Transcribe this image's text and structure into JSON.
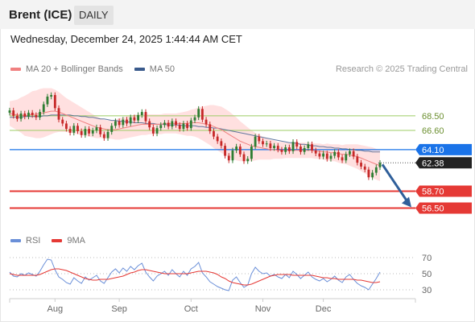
{
  "header": {
    "symbol": "Brent (ICE)",
    "period": "DAILY"
  },
  "datetime": "Wednesday, December 24, 2025 1:44:44 AM CET",
  "legend": {
    "ma20_label": "MA 20 + Bollinger Bands",
    "ma50_label": "MA 50",
    "credit": "Research © 2025 Trading Central"
  },
  "rsi_legend": {
    "rsi_label": "RSI",
    "ma9_label": "9MA"
  },
  "colors": {
    "up": "#2e7d32",
    "down": "#c62828",
    "bollinger": "#ffd6d6",
    "ma20": "#f08080",
    "ma50": "#3a5a8c",
    "resistance": "#9ccc65",
    "pivot": "#1a73e8",
    "support": "#e53935",
    "current": "#222222",
    "arrow": "#2f5f9a",
    "rsi": "#6a8fd8",
    "rsi_ma": "#e53935"
  },
  "chart_data": [
    {
      "type": "candlestick",
      "title": "Brent (ICE)",
      "xlabel": "",
      "ylabel": "",
      "x_ticks": [
        "Aug",
        "Sep",
        "Oct",
        "Nov",
        "Dec"
      ],
      "ylim": [
        55.5,
        71
      ],
      "levels": [
        {
          "value": 68.5,
          "label": "68.50",
          "kind": "resistance"
        },
        {
          "value": 66.6,
          "label": "66.60",
          "kind": "resistance"
        },
        {
          "value": 64.1,
          "label": "64.10",
          "kind": "pivot"
        },
        {
          "value": 62.38,
          "label": "62.38",
          "kind": "current"
        },
        {
          "value": 58.7,
          "label": "58.70",
          "kind": "support"
        },
        {
          "value": 56.5,
          "label": "56.50",
          "kind": "support"
        }
      ],
      "closes": [
        69.2,
        68.5,
        68.1,
        68.8,
        68.4,
        68.9,
        68.6,
        68.3,
        69.0,
        70.0,
        71.0,
        71.2,
        69.5,
        68.0,
        67.5,
        66.8,
        66.3,
        67.2,
        66.5,
        66.0,
        66.8,
        66.2,
        66.6,
        67.0,
        66.1,
        65.6,
        66.4,
        67.2,
        67.8,
        67.3,
        68.0,
        67.5,
        68.3,
        67.9,
        68.6,
        69.0,
        67.8,
        67.0,
        66.2,
        66.9,
        67.3,
        67.6,
        67.1,
        67.8,
        67.3,
        66.8,
        67.5,
        66.9,
        67.9,
        68.3,
        69.4,
        68.0,
        67.4,
        66.5,
        65.8,
        65.2,
        64.6,
        63.3,
        62.7,
        64.0,
        64.5,
        63.5,
        62.6,
        62.9,
        64.5,
        65.8,
        65.2,
        64.8,
        64.9,
        64.3,
        64.6,
        64.1,
        63.8,
        64.4,
        63.9,
        65.1,
        64.5,
        63.8,
        64.3,
        64.8,
        64.0,
        63.6,
        63.2,
        63.6,
        62.9,
        63.3,
        63.8,
        63.1,
        62.7,
        63.5,
        63.9,
        63.2,
        62.4,
        61.9,
        61.5,
        60.5,
        61.1,
        61.8,
        62.38
      ],
      "ma20": [
        68.8,
        68.7,
        68.6,
        68.6,
        68.5,
        68.6,
        68.7,
        68.7,
        68.8,
        68.9,
        69.0,
        69.1,
        69.1,
        69.0,
        68.8,
        68.6,
        68.4,
        68.2,
        68.0,
        67.8,
        67.6,
        67.4,
        67.2,
        67.0,
        66.9,
        66.8,
        66.7,
        66.7,
        66.7,
        66.8,
        66.9,
        67.0,
        67.1,
        67.2,
        67.3,
        67.4,
        67.4,
        67.4,
        67.4,
        67.4,
        67.4,
        67.5,
        67.5,
        67.5,
        67.5,
        67.5,
        67.5,
        67.5,
        67.6,
        67.6,
        67.6,
        67.5,
        67.4,
        67.3,
        67.1,
        66.9,
        66.7,
        66.4,
        66.1,
        65.8,
        65.5,
        65.2,
        65.0,
        64.8,
        64.6,
        64.5,
        64.4,
        64.3,
        64.2,
        64.1,
        64.1,
        64.0,
        64.0,
        64.0,
        64.0,
        64.0,
        64.0,
        64.0,
        64.0,
        64.0,
        64.0,
        63.9,
        63.9,
        63.8,
        63.8,
        63.7,
        63.7,
        63.6,
        63.5,
        63.5,
        63.4,
        63.3,
        63.2,
        63.0,
        62.8,
        62.6,
        62.4,
        62.2,
        62.0
      ],
      "ma50": [
        68.3,
        68.3,
        68.3,
        68.3,
        68.4,
        68.4,
        68.4,
        68.4,
        68.4,
        68.5,
        68.5,
        68.6,
        68.6,
        68.6,
        68.6,
        68.6,
        68.6,
        68.5,
        68.5,
        68.4,
        68.4,
        68.3,
        68.3,
        68.2,
        68.1,
        68.1,
        68.0,
        67.9,
        67.9,
        67.8,
        67.8,
        67.7,
        67.7,
        67.6,
        67.6,
        67.6,
        67.5,
        67.5,
        67.5,
        67.4,
        67.4,
        67.4,
        67.3,
        67.3,
        67.3,
        67.3,
        67.2,
        67.2,
        67.2,
        67.2,
        67.1,
        67.1,
        67.0,
        67.0,
        66.9,
        66.9,
        66.8,
        66.7,
        66.6,
        66.5,
        66.4,
        66.3,
        66.2,
        66.1,
        66.0,
        65.9,
        65.8,
        65.7,
        65.6,
        65.5,
        65.4,
        65.3,
        65.2,
        65.1,
        65.0,
        65.0,
        64.9,
        64.8,
        64.8,
        64.7,
        64.6,
        64.6,
        64.5,
        64.5,
        64.4,
        64.4,
        64.3,
        64.3,
        64.2,
        64.2,
        64.1,
        64.1,
        64.0,
        64.0,
        63.9,
        63.9,
        63.8,
        63.8,
        63.8
      ],
      "band_width": [
        1.6,
        1.8,
        2.0,
        2.3,
        2.6,
        2.8,
        3.0,
        3.1,
        3.2,
        3.2,
        3.1,
        3.0,
        2.8,
        2.6,
        2.4,
        2.2,
        2.1,
        2.0,
        1.9,
        1.8,
        1.7,
        1.6,
        1.5,
        1.4,
        1.3,
        1.2,
        1.2,
        1.2,
        1.3,
        1.4,
        1.4,
        1.4,
        1.4,
        1.4,
        1.4,
        1.4,
        1.4,
        1.3,
        1.3,
        1.3,
        1.3,
        1.3,
        1.3,
        1.3,
        1.3,
        1.4,
        1.5,
        1.6,
        1.7,
        1.8,
        2.0,
        2.2,
        2.4,
        2.6,
        2.8,
        2.9,
        3.0,
        3.0,
        3.0,
        2.9,
        2.8,
        2.6,
        2.4,
        2.2,
        2.0,
        1.8,
        1.6,
        1.5,
        1.4,
        1.3,
        1.2,
        1.1,
        1.1,
        1.0,
        1.0,
        1.0,
        1.0,
        1.0,
        1.0,
        1.0,
        1.0,
        1.0,
        1.0,
        1.0,
        1.1,
        1.1,
        1.1,
        1.2,
        1.2,
        1.3,
        1.4,
        1.5,
        1.6,
        1.7,
        1.8,
        1.9,
        2.0,
        2.0,
        2.0
      ]
    },
    {
      "type": "line",
      "title": "RSI",
      "y_ticks": [
        70,
        50,
        30
      ],
      "ylim": [
        25,
        75
      ],
      "series": [
        {
          "name": "RSI",
          "values": [
            52,
            47,
            46,
            50,
            48,
            51,
            49,
            47,
            53,
            61,
            68,
            67,
            55,
            46,
            43,
            39,
            37,
            45,
            41,
            38,
            46,
            42,
            45,
            48,
            41,
            38,
            45,
            52,
            56,
            51,
            57,
            53,
            59,
            55,
            60,
            63,
            52,
            46,
            41,
            47,
            50,
            53,
            48,
            55,
            50,
            46,
            53,
            48,
            56,
            59,
            64,
            51,
            46,
            40,
            37,
            34,
            32,
            30,
            29,
            42,
            46,
            39,
            33,
            36,
            50,
            58,
            53,
            50,
            51,
            47,
            49,
            46,
            44,
            49,
            45,
            53,
            49,
            44,
            48,
            52,
            46,
            43,
            41,
            44,
            40,
            43,
            47,
            42,
            39,
            46,
            49,
            43,
            38,
            35,
            33,
            30,
            37,
            44,
            52
          ]
        },
        {
          "name": "9MA",
          "values": [
            50,
            49,
            48,
            48,
            48,
            48,
            48,
            48,
            49,
            51,
            53,
            55,
            56,
            56,
            55,
            54,
            52,
            50,
            48,
            46,
            44,
            43,
            42,
            42,
            43,
            43,
            43,
            44,
            45,
            46,
            47,
            49,
            51,
            52,
            54,
            55,
            55,
            54,
            53,
            52,
            51,
            50,
            50,
            50,
            50,
            50,
            50,
            50,
            51,
            52,
            53,
            53,
            53,
            52,
            51,
            49,
            46,
            44,
            41,
            39,
            38,
            37,
            36,
            36,
            37,
            39,
            41,
            43,
            45,
            47,
            48,
            49,
            49,
            49,
            49,
            48,
            48,
            48,
            48,
            48,
            48,
            47,
            46,
            45,
            45,
            44,
            44,
            43,
            43,
            43,
            43,
            43,
            42,
            42,
            41,
            40,
            39,
            39,
            40
          ]
        }
      ]
    }
  ]
}
